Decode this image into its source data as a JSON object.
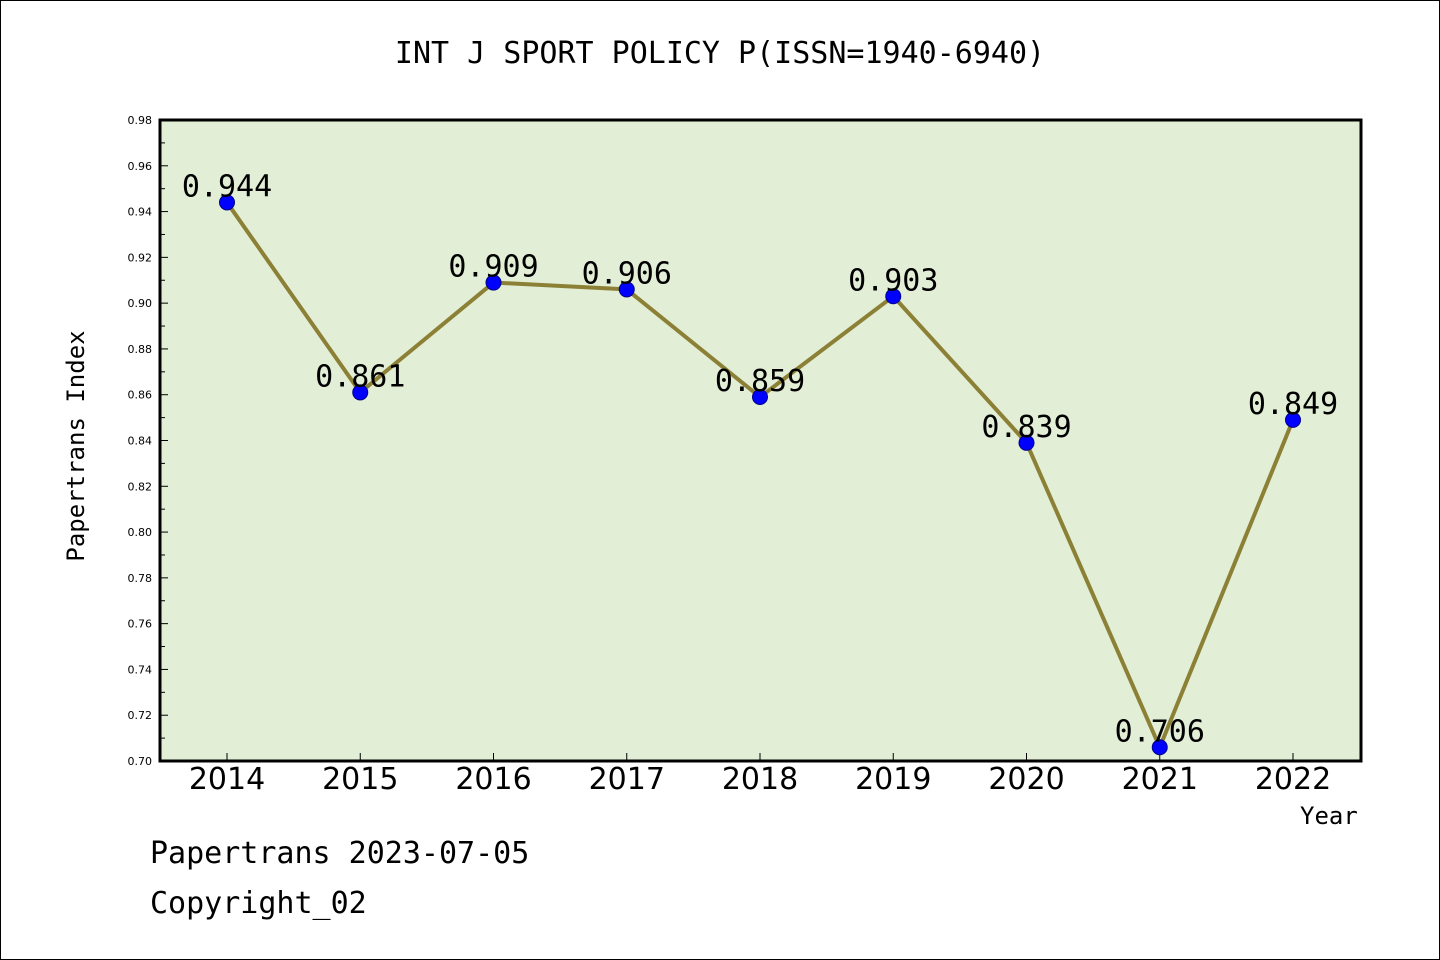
{
  "chart_data": {
    "type": "line",
    "title": "INT J SPORT POLICY P(ISSN=1940-6940)",
    "xlabel": "Year",
    "ylabel": "Papertrans Index",
    "categories": [
      "2014",
      "2015",
      "2016",
      "2017",
      "2018",
      "2019",
      "2020",
      "2021",
      "2022"
    ],
    "series": [
      {
        "values": [
          0.944,
          0.861,
          0.909,
          0.906,
          0.859,
          0.903,
          0.839,
          0.706,
          0.849
        ]
      }
    ],
    "data_labels": [
      "0.944",
      "0.861",
      "0.909",
      "0.906",
      "0.859",
      "0.903",
      "0.839",
      "0.706",
      "0.849"
    ],
    "ylim": [
      0.7,
      0.98
    ],
    "yticks": [
      "0.70",
      "0.72",
      "0.74",
      "0.76",
      "0.78",
      "0.80",
      "0.82",
      "0.84",
      "0.86",
      "0.88",
      "0.90",
      "0.92",
      "0.94",
      "0.96",
      "0.98"
    ],
    "grid": false,
    "legend": "none",
    "colors": {
      "plot_background": "#e2efd6",
      "line": "#8b8035",
      "marker": "#0000ff",
      "axis": "#000000"
    }
  },
  "footer": {
    "line1": "Papertrans 2023-07-05",
    "line2": "Copyright_02"
  }
}
